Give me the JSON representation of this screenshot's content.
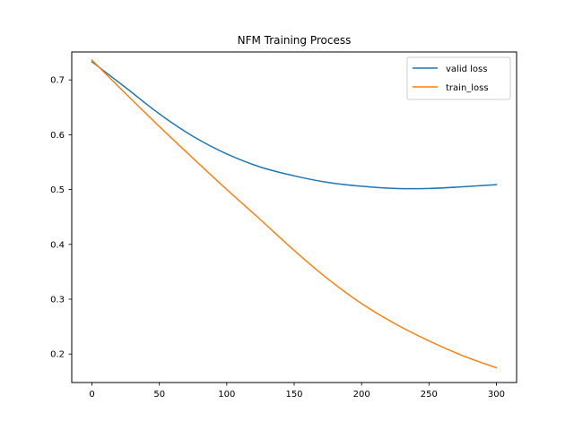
{
  "chart_data": {
    "type": "line",
    "title": "NFM Training Process",
    "xlabel": "",
    "ylabel": "",
    "xlim": [
      -15,
      315
    ],
    "ylim": [
      0.148,
      0.751
    ],
    "xticks": [
      0,
      50,
      100,
      150,
      200,
      250,
      300
    ],
    "yticks": [
      0.2,
      0.3,
      0.4,
      0.5,
      0.6,
      0.7
    ],
    "grid": false,
    "legend_position": "top-right",
    "series": [
      {
        "name": "valid loss",
        "color": "#1f77b4",
        "x": [
          0,
          25,
          50,
          75,
          100,
          125,
          150,
          175,
          200,
          225,
          250,
          275,
          300
        ],
        "y": [
          0.733,
          0.686,
          0.638,
          0.597,
          0.565,
          0.541,
          0.525,
          0.513,
          0.506,
          0.502,
          0.502,
          0.505,
          0.509
        ]
      },
      {
        "name": "train_loss",
        "color": "#ff7f0e",
        "x": [
          0,
          25,
          50,
          75,
          100,
          125,
          150,
          175,
          200,
          225,
          250,
          275,
          300
        ],
        "y": [
          0.736,
          0.675,
          0.615,
          0.557,
          0.5,
          0.445,
          0.389,
          0.337,
          0.292,
          0.255,
          0.224,
          0.197,
          0.175
        ]
      }
    ]
  }
}
